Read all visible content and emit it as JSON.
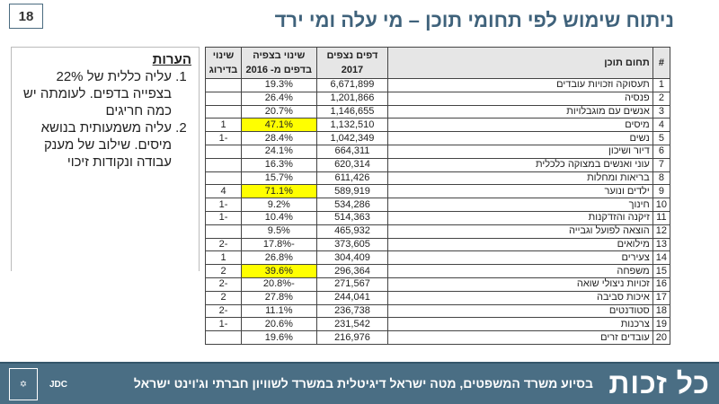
{
  "page_number": "18",
  "title": "ניתוח שימוש לפי תחומי תוכן – מי עלה ומי ירד",
  "notes": {
    "heading": "הערות",
    "items": [
      "עליה כללית של 22% בצפייה בדפים. לעומתה יש כמה חריגים",
      "עליה משמעותית בנושא מיסים. שילוב של מענק עבודה ונקודות זיכוי"
    ]
  },
  "table": {
    "headers": {
      "num": "#",
      "topic": "תחום תוכן",
      "pages": "דפים נצפים 2017",
      "change": "שינוי בצפיה בדפים מ- 2016",
      "rank": "שינוי בדירוג"
    },
    "highlight_color": "#ffff00",
    "rows": [
      {
        "num": "1",
        "topic": "תעסוקה וזכויות עובדים",
        "pages": "6,671,899",
        "change": "19.3%",
        "rank": ""
      },
      {
        "num": "2",
        "topic": "פנסיה",
        "pages": "1,201,866",
        "change": "26.4%",
        "rank": ""
      },
      {
        "num": "3",
        "topic": "אנשים עם מוגבלויות",
        "pages": "1,146,655",
        "change": "20.7%",
        "rank": ""
      },
      {
        "num": "4",
        "topic": "מיסים",
        "pages": "1,132,510",
        "change": "47.1%",
        "rank": "1",
        "highlight": true
      },
      {
        "num": "5",
        "topic": "נשים",
        "pages": "1,042,349",
        "change": "28.4%",
        "rank": "-1"
      },
      {
        "num": "6",
        "topic": "דיור ושיכון",
        "pages": "664,311",
        "change": "24.1%",
        "rank": ""
      },
      {
        "num": "7",
        "topic": "עוני ואנשים במצוקה כלכלית",
        "pages": "620,314",
        "change": "16.3%",
        "rank": ""
      },
      {
        "num": "8",
        "topic": "בריאות ומחלות",
        "pages": "611,426",
        "change": "15.7%",
        "rank": ""
      },
      {
        "num": "9",
        "topic": "ילדים ונוער",
        "pages": "589,919",
        "change": "71.1%",
        "rank": "4",
        "highlight": true
      },
      {
        "num": "10",
        "topic": "חינוך",
        "pages": "534,286",
        "change": "9.2%",
        "rank": "-1"
      },
      {
        "num": "11",
        "topic": "זיקנה והזדקנות",
        "pages": "514,363",
        "change": "10.4%",
        "rank": "-1"
      },
      {
        "num": "12",
        "topic": "הוצאה לפועל וגבייה",
        "pages": "465,932",
        "change": "9.5%",
        "rank": ""
      },
      {
        "num": "13",
        "topic": "מילואים",
        "pages": "373,605",
        "change": "-17.8%",
        "rank": "-2"
      },
      {
        "num": "14",
        "topic": "צעירים",
        "pages": "304,409",
        "change": "26.8%",
        "rank": "1"
      },
      {
        "num": "15",
        "topic": "משפחה",
        "pages": "296,364",
        "change": "39.6%",
        "rank": "2",
        "highlight": true
      },
      {
        "num": "16",
        "topic": "זכויות ניצולי שואה",
        "pages": "271,567",
        "change": "-20.8%",
        "rank": "-2"
      },
      {
        "num": "17",
        "topic": "איכות סביבה",
        "pages": "244,041",
        "change": "27.8%",
        "rank": "2"
      },
      {
        "num": "18",
        "topic": "סטודנטים",
        "pages": "236,738",
        "change": "11.1%",
        "rank": "-2"
      },
      {
        "num": "19",
        "topic": "צרכנות",
        "pages": "231,542",
        "change": "20.6%",
        "rank": "-1"
      },
      {
        "num": "20",
        "topic": "עובדים זרים",
        "pages": "216,976",
        "change": "19.6%",
        "rank": ""
      }
    ]
  },
  "footer": {
    "brand": "כל זכות",
    "text": "בסיוע משרד המשפטים, מטה ישראל דיגיטלית במשרד לשוויון חברתי וג'וינט ישראל",
    "logos": [
      "JDC",
      "state-emblem"
    ]
  }
}
